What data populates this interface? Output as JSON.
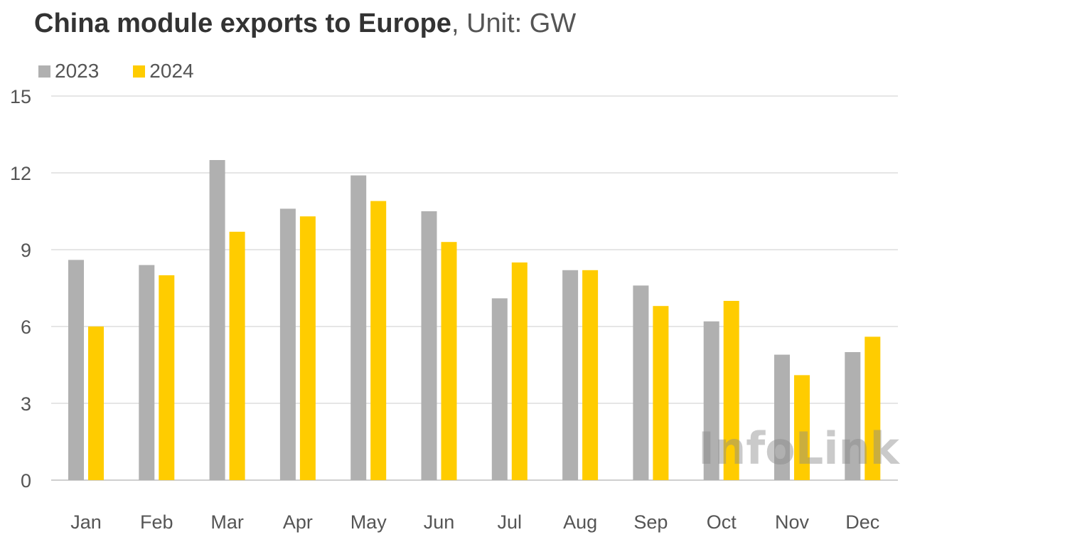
{
  "title": {
    "bold": "China module exports to Europe",
    "light": ", Unit: GW"
  },
  "watermark": "InfoLink",
  "chart_data": {
    "type": "bar",
    "categories": [
      "Jan",
      "Feb",
      "Mar",
      "Apr",
      "May",
      "Jun",
      "Jul",
      "Aug",
      "Sep",
      "Oct",
      "Nov",
      "Dec"
    ],
    "series": [
      {
        "name": "2023",
        "color": "#b0b0b0",
        "values": [
          8.6,
          8.4,
          12.5,
          10.6,
          11.9,
          10.5,
          7.1,
          8.2,
          7.6,
          6.2,
          4.9,
          5.0
        ]
      },
      {
        "name": "2024",
        "color": "#ffcc00",
        "values": [
          6.0,
          8.0,
          9.7,
          10.3,
          10.9,
          9.3,
          8.5,
          8.2,
          6.8,
          7.0,
          4.1,
          5.6
        ]
      }
    ],
    "ylim": [
      0,
      15
    ],
    "yticks": [
      0,
      3,
      6,
      9,
      12,
      15
    ],
    "grid": true,
    "legend_position": "top-left",
    "xlabel": "",
    "ylabel": ""
  }
}
